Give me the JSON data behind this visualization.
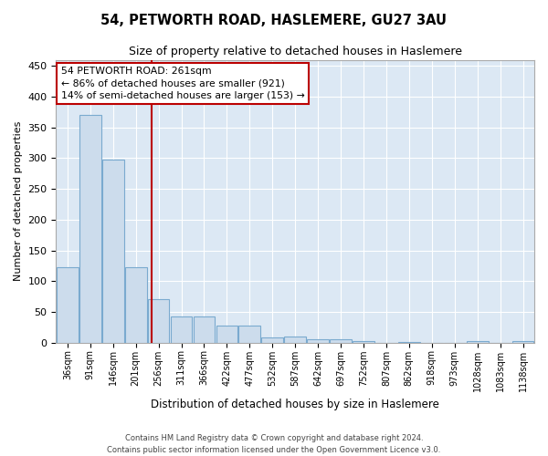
{
  "title1": "54, PETWORTH ROAD, HASLEMERE, GU27 3AU",
  "title2": "Size of property relative to detached houses in Haslemere",
  "xlabel": "Distribution of detached houses by size in Haslemere",
  "ylabel": "Number of detached properties",
  "bar_color": "#ccdcec",
  "bar_edge_color": "#7aaacf",
  "background_color": "#dce8f4",
  "vline_color": "#bb0000",
  "categories": [
    "36sqm",
    "91sqm",
    "146sqm",
    "201sqm",
    "256sqm",
    "311sqm",
    "366sqm",
    "422sqm",
    "477sqm",
    "532sqm",
    "587sqm",
    "642sqm",
    "697sqm",
    "752sqm",
    "807sqm",
    "862sqm",
    "918sqm",
    "973sqm",
    "1028sqm",
    "1083sqm",
    "1138sqm"
  ],
  "values": [
    122,
    370,
    297,
    122,
    70,
    43,
    43,
    28,
    28,
    8,
    10,
    5,
    5,
    2,
    0,
    1,
    0,
    0,
    3,
    0,
    2
  ],
  "vline_bar_index": 4,
  "ylim": [
    0,
    460
  ],
  "yticks": [
    0,
    50,
    100,
    150,
    200,
    250,
    300,
    350,
    400,
    450
  ],
  "annotation_line1": "54 PETWORTH ROAD: 261sqm",
  "annotation_line2": "← 86% of detached houses are smaller (921)",
  "annotation_line3": "14% of semi-detached houses are larger (153) →",
  "ann_box_facecolor": "#ffffff",
  "ann_box_edgecolor": "#bb0000",
  "footer1": "Contains HM Land Registry data © Crown copyright and database right 2024.",
  "footer2": "Contains public sector information licensed under the Open Government Licence v3.0.",
  "grid_color": "#ffffff",
  "spine_color": "#aaaaaa"
}
